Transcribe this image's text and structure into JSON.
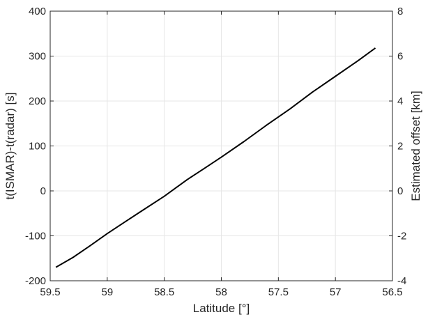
{
  "chart_data": {
    "type": "line",
    "xlabel": "Latitude [°]",
    "ylabel": "t(ISMAR)-t(radar) [s]",
    "y2label": "Estimated offset [km]",
    "x_reversed": true,
    "xlim": [
      56.5,
      59.5
    ],
    "ylim": [
      -200,
      400
    ],
    "y2lim": [
      -4,
      8
    ],
    "xticks": [
      59.5,
      59,
      58.5,
      58,
      57.5,
      57,
      56.5
    ],
    "xtick_labels": [
      "59.5",
      "59",
      "58.5",
      "58",
      "57.5",
      "57",
      "56.5"
    ],
    "yticks": [
      -200,
      -100,
      0,
      100,
      200,
      300,
      400
    ],
    "ytick_labels": [
      "-200",
      "-100",
      "0",
      "100",
      "200",
      "300",
      "400"
    ],
    "y2ticks": [
      -4,
      -2,
      0,
      2,
      4,
      6,
      8
    ],
    "y2tick_labels": [
      "-4",
      "-2",
      "0",
      "2",
      "4",
      "6",
      "8"
    ],
    "grid": true,
    "colors": {
      "line": "#000000",
      "grid": "#e6e6e6",
      "axis": "#262626"
    },
    "series": [
      {
        "x": [
          59.45,
          59.3,
          59.15,
          59.0,
          58.85,
          58.7,
          58.5,
          58.3,
          58.15,
          58.0,
          57.8,
          57.6,
          57.4,
          57.2,
          57.0,
          56.8,
          56.65
        ],
        "y": [
          -170,
          -148,
          -122,
          -95,
          -70,
          -45,
          -12,
          25,
          50,
          75,
          110,
          147,
          182,
          220,
          255,
          290,
          318
        ]
      }
    ]
  }
}
